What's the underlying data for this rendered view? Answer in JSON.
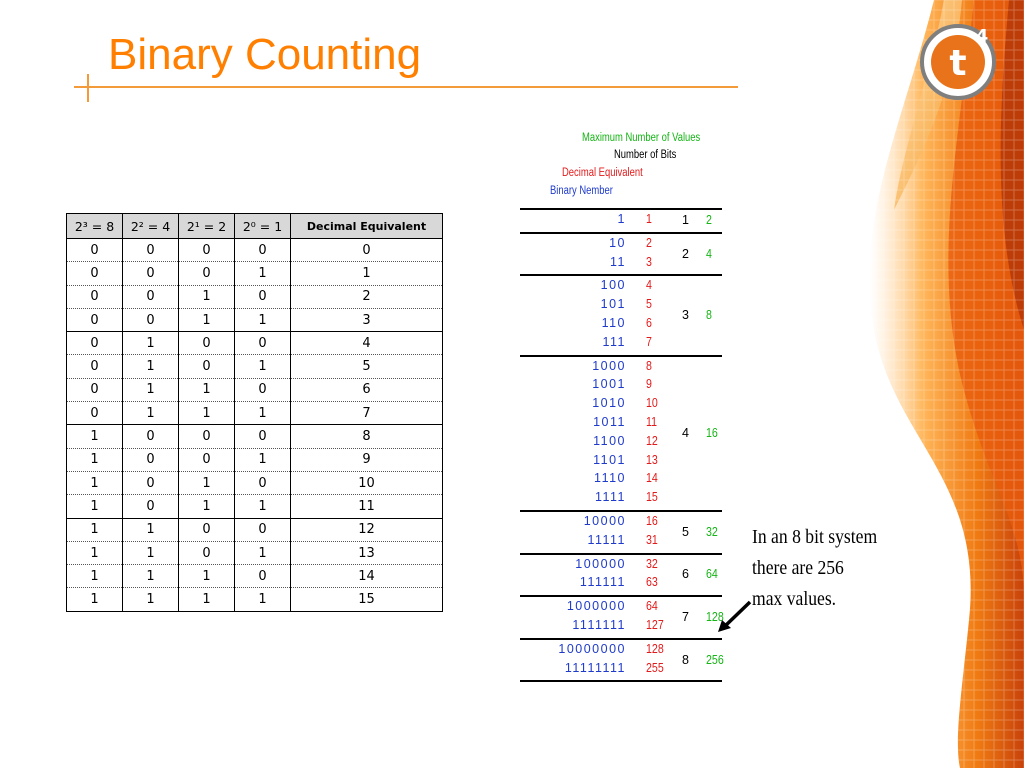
{
  "title": "Binary Counting",
  "logo": {
    "letter": "t",
    "superscript": "4"
  },
  "colors": {
    "title": "#ff7f00",
    "binary": "#1f3bcc",
    "decimal": "#e31a1a",
    "max": "#16b516"
  },
  "left_table": {
    "headers": [
      "2³ = 8",
      "2² = 4",
      "2¹ = 2",
      "2⁰ = 1",
      "Decimal Equivalent"
    ],
    "rows": [
      [
        "0",
        "0",
        "0",
        "0",
        "0"
      ],
      [
        "0",
        "0",
        "0",
        "1",
        "1"
      ],
      [
        "0",
        "0",
        "1",
        "0",
        "2"
      ],
      [
        "0",
        "0",
        "1",
        "1",
        "3"
      ],
      [
        "0",
        "1",
        "0",
        "0",
        "4"
      ],
      [
        "0",
        "1",
        "0",
        "1",
        "5"
      ],
      [
        "0",
        "1",
        "1",
        "0",
        "6"
      ],
      [
        "0",
        "1",
        "1",
        "1",
        "7"
      ],
      [
        "1",
        "0",
        "0",
        "0",
        "8"
      ],
      [
        "1",
        "0",
        "0",
        "1",
        "9"
      ],
      [
        "1",
        "0",
        "1",
        "0",
        "10"
      ],
      [
        "1",
        "0",
        "1",
        "1",
        "11"
      ],
      [
        "1",
        "1",
        "0",
        "0",
        "12"
      ],
      [
        "1",
        "1",
        "0",
        "1",
        "13"
      ],
      [
        "1",
        "1",
        "1",
        "0",
        "14"
      ],
      [
        "1",
        "1",
        "1",
        "1",
        "15"
      ]
    ]
  },
  "right_diagram": {
    "headers": {
      "max_values": "Maximum Number of Values",
      "bits": "Number of Bits",
      "decimal": "Decimal Equivalent",
      "binary": "Binary Nember"
    },
    "groups": [
      {
        "bits": "1",
        "max": "2",
        "rows": [
          [
            "1",
            "1"
          ]
        ]
      },
      {
        "bits": "2",
        "max": "4",
        "rows": [
          [
            "10",
            "2"
          ],
          [
            "11",
            "3"
          ]
        ]
      },
      {
        "bits": "3",
        "max": "8",
        "rows": [
          [
            "100",
            "4"
          ],
          [
            "101",
            "5"
          ],
          [
            "110",
            "6"
          ],
          [
            "111",
            "7"
          ]
        ]
      },
      {
        "bits": "4",
        "max": "16",
        "rows": [
          [
            "1000",
            "8"
          ],
          [
            "1001",
            "9"
          ],
          [
            "1010",
            "10"
          ],
          [
            "1011",
            "11"
          ],
          [
            "1100",
            "12"
          ],
          [
            "1101",
            "13"
          ],
          [
            "1110",
            "14"
          ],
          [
            "1111",
            "15"
          ]
        ]
      },
      {
        "bits": "5",
        "max": "32",
        "rows": [
          [
            "10000",
            "16"
          ],
          [
            "11111",
            "31"
          ]
        ]
      },
      {
        "bits": "6",
        "max": "64",
        "rows": [
          [
            "100000",
            "32"
          ],
          [
            "111111",
            "63"
          ]
        ]
      },
      {
        "bits": "7",
        "max": "128",
        "rows": [
          [
            "1000000",
            "64"
          ],
          [
            "1111111",
            "127"
          ]
        ]
      },
      {
        "bits": "8",
        "max": "256",
        "rows": [
          [
            "10000000",
            "128"
          ],
          [
            "11111111",
            "255"
          ]
        ]
      }
    ]
  },
  "note": [
    "In an 8 bit system",
    "there are 256",
    "max values."
  ]
}
